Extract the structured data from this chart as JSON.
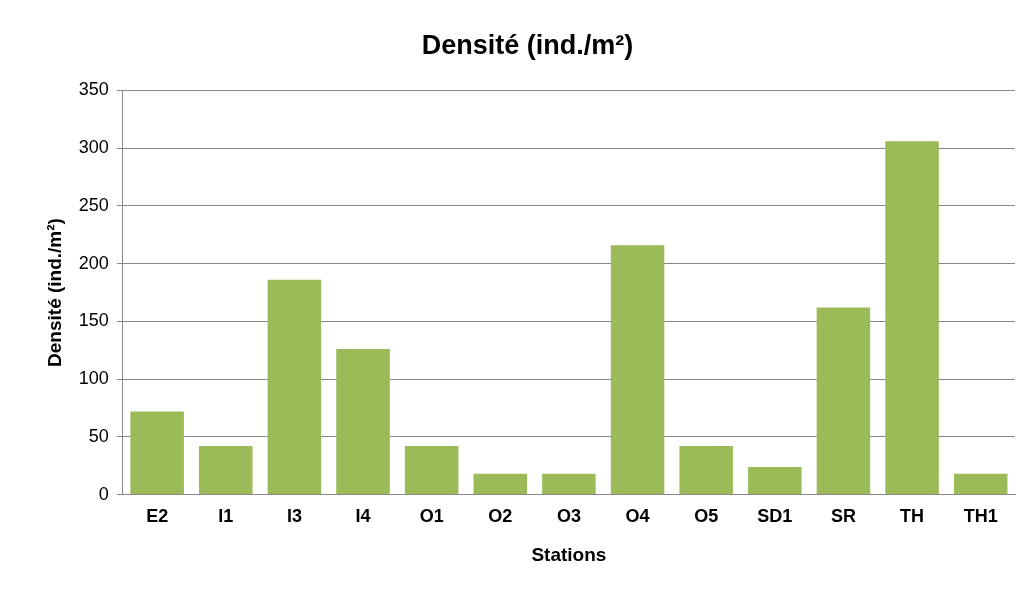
{
  "chart_data": {
    "type": "bar",
    "title": "Densité (ind./m²)",
    "xlabel": "Stations",
    "ylabel": "Densité (ind./m²)",
    "categories": [
      "E2",
      "I1",
      "I3",
      "I4",
      "O1",
      "O2",
      "O3",
      "O4",
      "O5",
      "SD1",
      "SR",
      "TH",
      "TH1"
    ],
    "values": [
      72,
      42,
      186,
      126,
      42,
      18,
      18,
      216,
      42,
      24,
      162,
      306,
      18
    ],
    "color": "#9bbb59",
    "ylim": [
      0,
      350
    ],
    "yticks": [
      0,
      50,
      100,
      150,
      200,
      250,
      300,
      350
    ],
    "grid": "y",
    "legend": false
  }
}
